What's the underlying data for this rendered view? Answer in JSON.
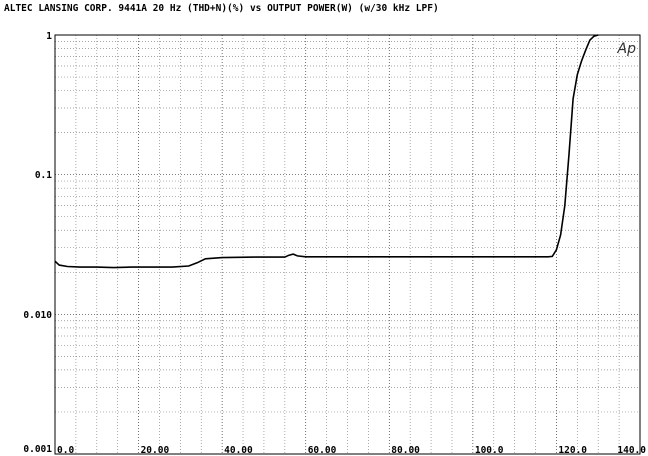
{
  "chart_data": {
    "type": "line",
    "title": "ALTEC LANSING CORP. 9441A  20 Hz  (THD+N)(%) vs OUTPUT POWER(W)  (w/30 kHz LPF)",
    "xlabel": "",
    "ylabel": "",
    "ylim": [
      0.001,
      1
    ],
    "y_scale": "log",
    "xlim": [
      0,
      140
    ],
    "y_tick_labels": [
      "1",
      "0.1",
      "0.010",
      "0.001"
    ],
    "y_tick_values": [
      1,
      0.1,
      0.01,
      0.001
    ],
    "x_tick_labels": [
      "0.0",
      "20.00",
      "40.00",
      "60.00",
      "80.00",
      "100.0",
      "120.0",
      "140.0"
    ],
    "x_tick_values": [
      0,
      20,
      40,
      60,
      80,
      100,
      120,
      140
    ],
    "grid": true,
    "series": [
      {
        "x": [
          0,
          1,
          3,
          6,
          10,
          14,
          18,
          20,
          24,
          28,
          32,
          34,
          36,
          40,
          44,
          48,
          52,
          55,
          56,
          57,
          58,
          60,
          70,
          80,
          90,
          100,
          110,
          118,
          119,
          120,
          121,
          122,
          123,
          124,
          125,
          126,
          127,
          128,
          129,
          130
        ],
        "values": [
          0.024,
          0.0225,
          0.022,
          0.0218,
          0.0218,
          0.0216,
          0.0218,
          0.0218,
          0.0218,
          0.0218,
          0.0222,
          0.0234,
          0.025,
          0.0255,
          0.0256,
          0.0257,
          0.0257,
          0.0257,
          0.0265,
          0.027,
          0.0262,
          0.0258,
          0.0258,
          0.0258,
          0.0258,
          0.0258,
          0.0258,
          0.0258,
          0.026,
          0.029,
          0.037,
          0.06,
          0.14,
          0.35,
          0.52,
          0.65,
          0.78,
          0.92,
          0.98,
          1.0
        ]
      }
    ],
    "annotation": "Ap"
  }
}
